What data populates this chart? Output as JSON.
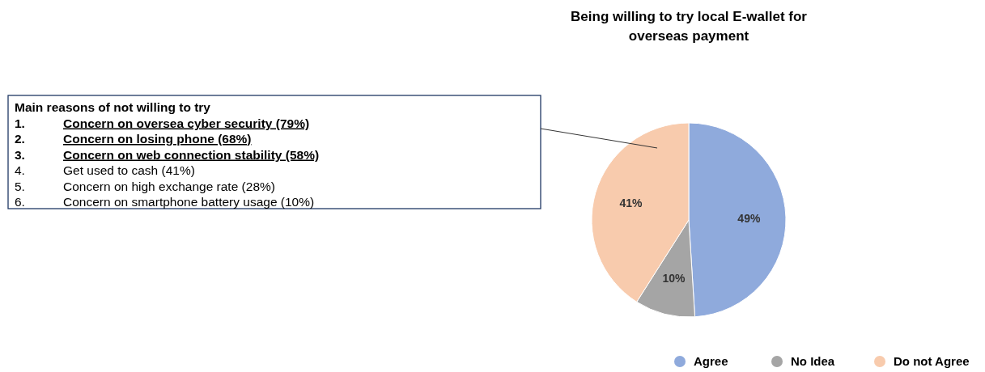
{
  "chart_data": {
    "type": "pie",
    "title": "Being willing to try local E-wallet for overseas payment",
    "categories": [
      "Agree",
      "No Idea",
      "Do not Agree"
    ],
    "values": [
      49,
      10,
      41
    ],
    "colors": [
      "#8faadc",
      "#a5a5a5",
      "#f8cbad"
    ],
    "value_labels": [
      "49%",
      "10%",
      "41%"
    ],
    "legend": "bottom",
    "annotations": [
      "Main reasons of not willing to try",
      "1. Concern on oversea cyber security (79%)",
      "2. Concern on losing phone (68%)",
      "3. Concern on web connection stability (58%)",
      "4. Get used to cash (41%)",
      "5. Concern on high exchange rate (28%)",
      "6. Concern on smartphone battery usage (10%)"
    ]
  }
}
